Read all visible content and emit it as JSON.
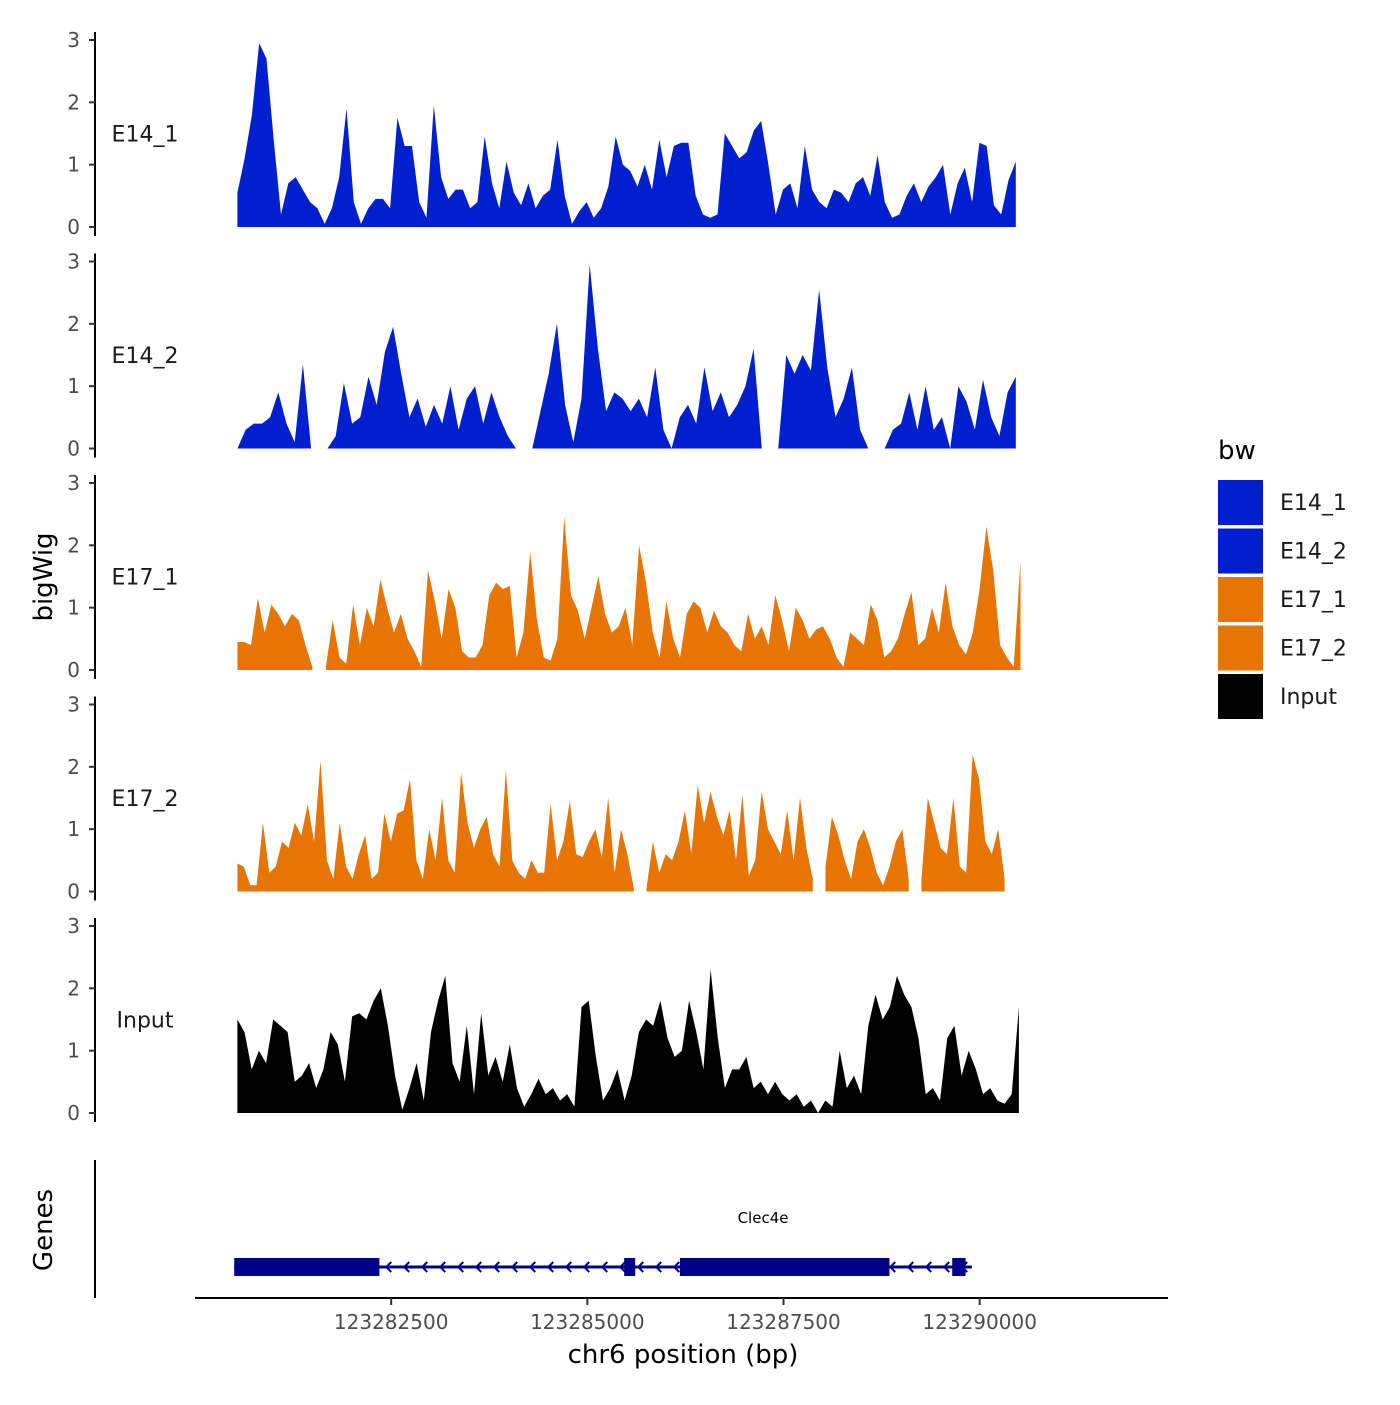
{
  "chart_data": {
    "type": "area",
    "title": "",
    "chromosome": "chr6",
    "xlabel": "chr6 position (bp)",
    "ylabel": "bigWig",
    "genes_label": "Genes",
    "xlim": [
      123280000,
      123292400
    ],
    "x_ticks": [
      123282500,
      123285000,
      123287500,
      123290000
    ],
    "x_tick_labels": [
      "123282500",
      "123285000",
      "123287500",
      "123290000"
    ],
    "ylim": [
      0,
      3
    ],
    "y_ticks": [
      0,
      1,
      2,
      3
    ],
    "y_tick_labels": [
      "0",
      "1",
      "2",
      "3"
    ],
    "legend": {
      "title": "bw",
      "items": [
        {
          "label": "E14_1",
          "color": "#0020d0"
        },
        {
          "label": "E14_2",
          "color": "#0020d0"
        },
        {
          "label": "E17_1",
          "color": "#e67504"
        },
        {
          "label": "E17_2",
          "color": "#e67504"
        },
        {
          "label": "Input",
          "color": "#000000"
        }
      ]
    },
    "series": [
      {
        "name": "E14_1",
        "color": "#0020d0",
        "x_start": 123280540,
        "x_end": 123290460,
        "values": [
          0.55,
          1.1,
          1.8,
          2.95,
          2.7,
          1.4,
          0.2,
          0.7,
          0.8,
          0.6,
          0.4,
          0.3,
          0.05,
          0.3,
          0.8,
          1.9,
          0.4,
          0.05,
          0.3,
          0.45,
          0.45,
          0.3,
          1.75,
          1.3,
          1.3,
          0.4,
          0.15,
          1.95,
          0.8,
          0.45,
          0.6,
          0.6,
          0.3,
          0.4,
          1.45,
          0.7,
          0.3,
          1.05,
          0.55,
          0.35,
          0.7,
          0.3,
          0.5,
          0.6,
          1.4,
          0.5,
          0.05,
          0.25,
          0.4,
          0.15,
          0.3,
          0.65,
          1.45,
          1.0,
          0.9,
          0.65,
          1.0,
          0.6,
          1.4,
          0.8,
          1.3,
          1.35,
          1.35,
          0.5,
          0.2,
          0.15,
          0.2,
          1.5,
          1.3,
          1.1,
          1.2,
          1.55,
          1.7,
          1.0,
          0.2,
          0.6,
          0.7,
          0.3,
          1.3,
          0.6,
          0.4,
          0.3,
          0.6,
          0.55,
          0.4,
          0.7,
          0.8,
          0.5,
          1.15,
          0.4,
          0.15,
          0.2,
          0.5,
          0.7,
          0.4,
          0.65,
          0.8,
          1.0,
          0.2,
          0.7,
          0.95,
          0.4,
          1.35,
          1.3,
          0.35,
          0.2,
          0.75,
          1.05
        ]
      },
      {
        "name": "E14_2",
        "color": "#0020d0",
        "x_start": 123280540,
        "x_end": 123290460,
        "values": [
          0,
          0.3,
          0.4,
          0.4,
          0.5,
          0.9,
          0.4,
          0.1,
          1.35,
          0,
          null,
          0,
          0.2,
          1.05,
          0.4,
          0.5,
          1.15,
          0.7,
          1.55,
          1.95,
          1.2,
          0.5,
          0.8,
          0.35,
          0.7,
          0.4,
          1.0,
          0.3,
          0.8,
          1.0,
          0.4,
          0.9,
          0.5,
          0.2,
          0,
          null,
          0,
          0.6,
          1.2,
          2.0,
          0.7,
          0.1,
          0.8,
          2.95,
          1.6,
          0.6,
          0.9,
          0.8,
          0.6,
          0.8,
          0.5,
          1.3,
          0.3,
          0,
          0.5,
          0.7,
          0.4,
          1.3,
          0.6,
          0.9,
          0.5,
          0.7,
          1.0,
          1.6,
          0,
          null,
          0,
          1.5,
          1.2,
          1.5,
          1.25,
          2.55,
          1.3,
          0.5,
          0.8,
          1.3,
          0.3,
          0,
          null,
          0,
          0.3,
          0.4,
          0.9,
          0.3,
          1.0,
          0.3,
          0.5,
          0,
          1.0,
          0.75,
          0.3,
          1.1,
          0.5,
          0.2,
          0.9,
          1.15
        ]
      },
      {
        "name": "E17_1",
        "color": "#e67504",
        "x_start": 123280540,
        "x_end": 123290520,
        "values": [
          0.45,
          0.45,
          0.4,
          1.15,
          0.6,
          1.05,
          0.9,
          0.7,
          0.9,
          0.8,
          0.4,
          0.05,
          null,
          0.05,
          0.8,
          0.2,
          0.1,
          1.05,
          0.4,
          1.0,
          0.7,
          1.45,
          1.0,
          0.6,
          0.9,
          0.5,
          0.3,
          0.05,
          1.6,
          1.1,
          0.5,
          1.3,
          1.0,
          0.3,
          0.2,
          0.2,
          0.4,
          1.2,
          1.4,
          1.3,
          1.35,
          0.2,
          0.6,
          1.9,
          0.8,
          0.2,
          0.15,
          0.5,
          2.45,
          1.2,
          0.95,
          0.5,
          1.0,
          1.5,
          0.9,
          0.6,
          0.7,
          1.0,
          0.4,
          2.0,
          1.4,
          0.6,
          0.2,
          1.1,
          0.5,
          0.2,
          0.9,
          1.1,
          1.0,
          0.6,
          0.95,
          0.7,
          0.6,
          0.4,
          0.3,
          0.9,
          0.5,
          0.7,
          0.4,
          1.2,
          0.8,
          0.3,
          1.0,
          0.8,
          0.5,
          0.65,
          0.7,
          0.5,
          0.2,
          0.05,
          0.6,
          0.5,
          0.4,
          1.05,
          0.8,
          0.2,
          0.3,
          0.5,
          0.9,
          1.25,
          0.4,
          0.5,
          1.0,
          0.6,
          1.4,
          0.7,
          0.4,
          0.25,
          0.6,
          1.3,
          2.3,
          1.6,
          0.4,
          0.2,
          0.05,
          1.75
        ]
      },
      {
        "name": "E17_2",
        "color": "#e67504",
        "x_start": 123280540,
        "x_end": 123290480,
        "values": [
          0.45,
          0.4,
          0.1,
          0.1,
          1.1,
          0.3,
          0.4,
          0.8,
          0.7,
          1.1,
          0.9,
          1.4,
          0.8,
          2.1,
          0.5,
          0.2,
          1.1,
          0.4,
          0.2,
          0.6,
          0.9,
          0.2,
          0.3,
          1.25,
          0.8,
          1.25,
          1.3,
          1.8,
          0.5,
          0.2,
          1.0,
          0.5,
          1.5,
          0.5,
          0.3,
          1.9,
          1.1,
          0.7,
          1.0,
          1.2,
          0.6,
          0.4,
          1.95,
          0.5,
          0.3,
          0.2,
          0.5,
          0.3,
          0.3,
          1.4,
          0.5,
          0.8,
          1.45,
          0.6,
          0.55,
          0.8,
          1.0,
          0.55,
          1.5,
          0.3,
          1.0,
          0.6,
          0.05,
          null,
          0.05,
          0.8,
          0.3,
          0.6,
          0.5,
          0.8,
          1.3,
          0.6,
          1.7,
          1.1,
          1.6,
          1.2,
          0.9,
          1.3,
          0.5,
          1.55,
          0.25,
          0.5,
          1.6,
          1.0,
          0.8,
          0.6,
          1.3,
          0.5,
          1.5,
          0.7,
          0.2,
          null,
          0.4,
          1.2,
          0.9,
          0.5,
          0.2,
          0.8,
          1.0,
          0.7,
          0.3,
          0.1,
          0.4,
          0.8,
          1.0,
          0.2,
          null,
          0.2,
          1.5,
          1.1,
          0.7,
          0.6,
          1.5,
          0.4,
          0.3,
          2.2,
          1.8,
          0.8,
          0.6,
          1.0,
          0.2,
          null,
          0.95
        ]
      },
      {
        "name": "Input",
        "color": "#000000",
        "x_start": 123280540,
        "x_end": 123290500,
        "values": [
          1.5,
          1.3,
          0.7,
          1.0,
          0.8,
          1.5,
          1.4,
          1.3,
          0.5,
          0.6,
          0.8,
          0.4,
          0.7,
          1.3,
          1.1,
          0.5,
          1.55,
          1.6,
          1.5,
          1.8,
          2.0,
          1.4,
          0.6,
          0.05,
          0.4,
          0.8,
          0.2,
          1.3,
          1.8,
          2.2,
          0.8,
          0.5,
          1.4,
          0.3,
          1.6,
          0.6,
          0.9,
          0.5,
          1.1,
          0.4,
          0.1,
          0.3,
          0.55,
          0.3,
          0.4,
          0.2,
          0.3,
          0.1,
          1.7,
          1.8,
          0.9,
          0.2,
          0.4,
          0.7,
          0.2,
          0.6,
          1.3,
          1.5,
          1.4,
          1.8,
          1.2,
          0.9,
          1.0,
          1.8,
          1.3,
          0.7,
          2.3,
          1.2,
          0.4,
          0.7,
          0.7,
          0.9,
          0.4,
          0.5,
          0.3,
          0.5,
          0.3,
          0.2,
          0.3,
          0.1,
          0.2,
          0.0,
          0.2,
          0.1,
          1.0,
          0.4,
          0.6,
          0.3,
          1.4,
          1.9,
          1.5,
          1.7,
          2.2,
          1.9,
          1.7,
          1.2,
          0.3,
          0.4,
          0.2,
          1.2,
          1.4,
          0.6,
          1.0,
          0.7,
          0.3,
          0.4,
          0.2,
          0.15,
          0.3,
          1.7
        ]
      }
    ],
    "genes": [
      {
        "name": "Clec4e",
        "strand": "-",
        "color": "#00008b",
        "start": 123280500,
        "end": 123289900,
        "exons": [
          [
            123280500,
            123282350
          ],
          [
            123285470,
            123285610
          ],
          [
            123286180,
            123288850
          ],
          [
            123289650,
            123289820
          ]
        ]
      }
    ]
  }
}
